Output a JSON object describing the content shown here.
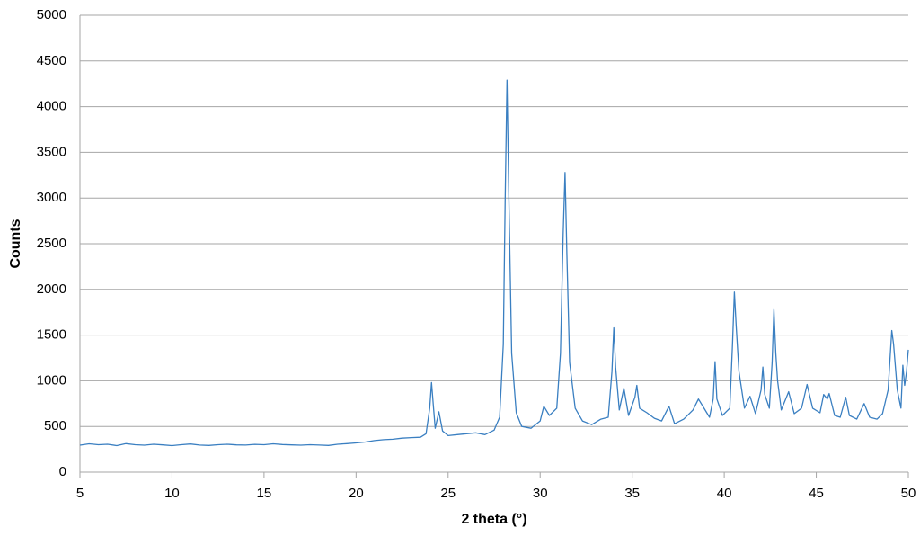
{
  "chart_data": {
    "type": "line",
    "x_label": "2 theta (°)",
    "y_label": "Counts",
    "color": "#3a7fc1",
    "grid": true,
    "xlim": [
      5,
      50
    ],
    "ylim": [
      0,
      5000
    ],
    "xticks": [
      5,
      10,
      15,
      20,
      25,
      30,
      35,
      40,
      45,
      50
    ],
    "yticks": [
      0,
      500,
      1000,
      1500,
      2000,
      2500,
      3000,
      3500,
      4000,
      4500,
      5000
    ],
    "x": [
      5,
      5.5,
      6,
      6.5,
      7,
      7.5,
      8,
      8.5,
      9,
      9.5,
      10,
      10.5,
      11,
      11.5,
      12,
      12.5,
      13,
      13.5,
      14,
      14.5,
      15,
      15.5,
      16,
      16.5,
      17,
      17.5,
      18,
      18.5,
      19,
      19.5,
      20,
      20.5,
      21,
      21.5,
      22,
      22.5,
      23,
      23.5,
      23.8,
      24.0,
      24.1,
      24.2,
      24.3,
      24.5,
      24.7,
      25,
      25.5,
      26,
      26.5,
      27,
      27.5,
      27.8,
      28.0,
      28.1,
      28.2,
      28.3,
      28.45,
      28.7,
      29,
      29.5,
      30,
      30.2,
      30.5,
      30.9,
      31.1,
      31.25,
      31.35,
      31.45,
      31.6,
      31.9,
      32.3,
      32.8,
      33.3,
      33.7,
      33.9,
      34.0,
      34.1,
      34.3,
      34.55,
      34.8,
      35.15,
      35.25,
      35.4,
      35.8,
      36.2,
      36.6,
      37,
      37.3,
      37.8,
      38.3,
      38.6,
      38.9,
      39.2,
      39.4,
      39.5,
      39.6,
      39.9,
      40.3,
      40.45,
      40.55,
      40.65,
      40.8,
      41.1,
      41.4,
      41.7,
      42.0,
      42.1,
      42.2,
      42.45,
      42.6,
      42.7,
      42.8,
      42.9,
      43.1,
      43.5,
      43.8,
      44.2,
      44.5,
      44.8,
      45.2,
      45.4,
      45.6,
      45.7,
      46.0,
      46.3,
      46.6,
      46.8,
      47.2,
      47.6,
      47.9,
      48.3,
      48.6,
      48.9,
      49.1,
      49.2,
      49.4,
      49.6,
      49.7,
      49.8,
      49.9,
      50
    ],
    "values": [
      295,
      310,
      300,
      305,
      290,
      312,
      300,
      295,
      305,
      298,
      290,
      300,
      308,
      296,
      292,
      300,
      305,
      298,
      296,
      304,
      300,
      310,
      302,
      298,
      295,
      300,
      296,
      292,
      305,
      312,
      320,
      330,
      345,
      355,
      360,
      372,
      378,
      382,
      420,
      700,
      980,
      720,
      480,
      660,
      450,
      400,
      410,
      420,
      430,
      410,
      460,
      600,
      1400,
      3000,
      4290,
      3000,
      1300,
      650,
      500,
      480,
      560,
      720,
      620,
      700,
      1300,
      2600,
      3280,
      2400,
      1200,
      700,
      560,
      520,
      580,
      600,
      1100,
      1580,
      1150,
      680,
      920,
      620,
      820,
      950,
      700,
      650,
      590,
      560,
      720,
      530,
      580,
      680,
      800,
      700,
      600,
      800,
      1210,
      800,
      620,
      700,
      1400,
      1970,
      1600,
      1100,
      700,
      830,
      640,
      900,
      1150,
      850,
      700,
      1200,
      1780,
      1300,
      1000,
      680,
      880,
      640,
      700,
      960,
      700,
      650,
      850,
      800,
      860,
      620,
      600,
      820,
      620,
      580,
      750,
      600,
      580,
      640,
      900,
      1550,
      1400,
      900,
      700,
      1170,
      950,
      1100,
      1340
    ]
  }
}
